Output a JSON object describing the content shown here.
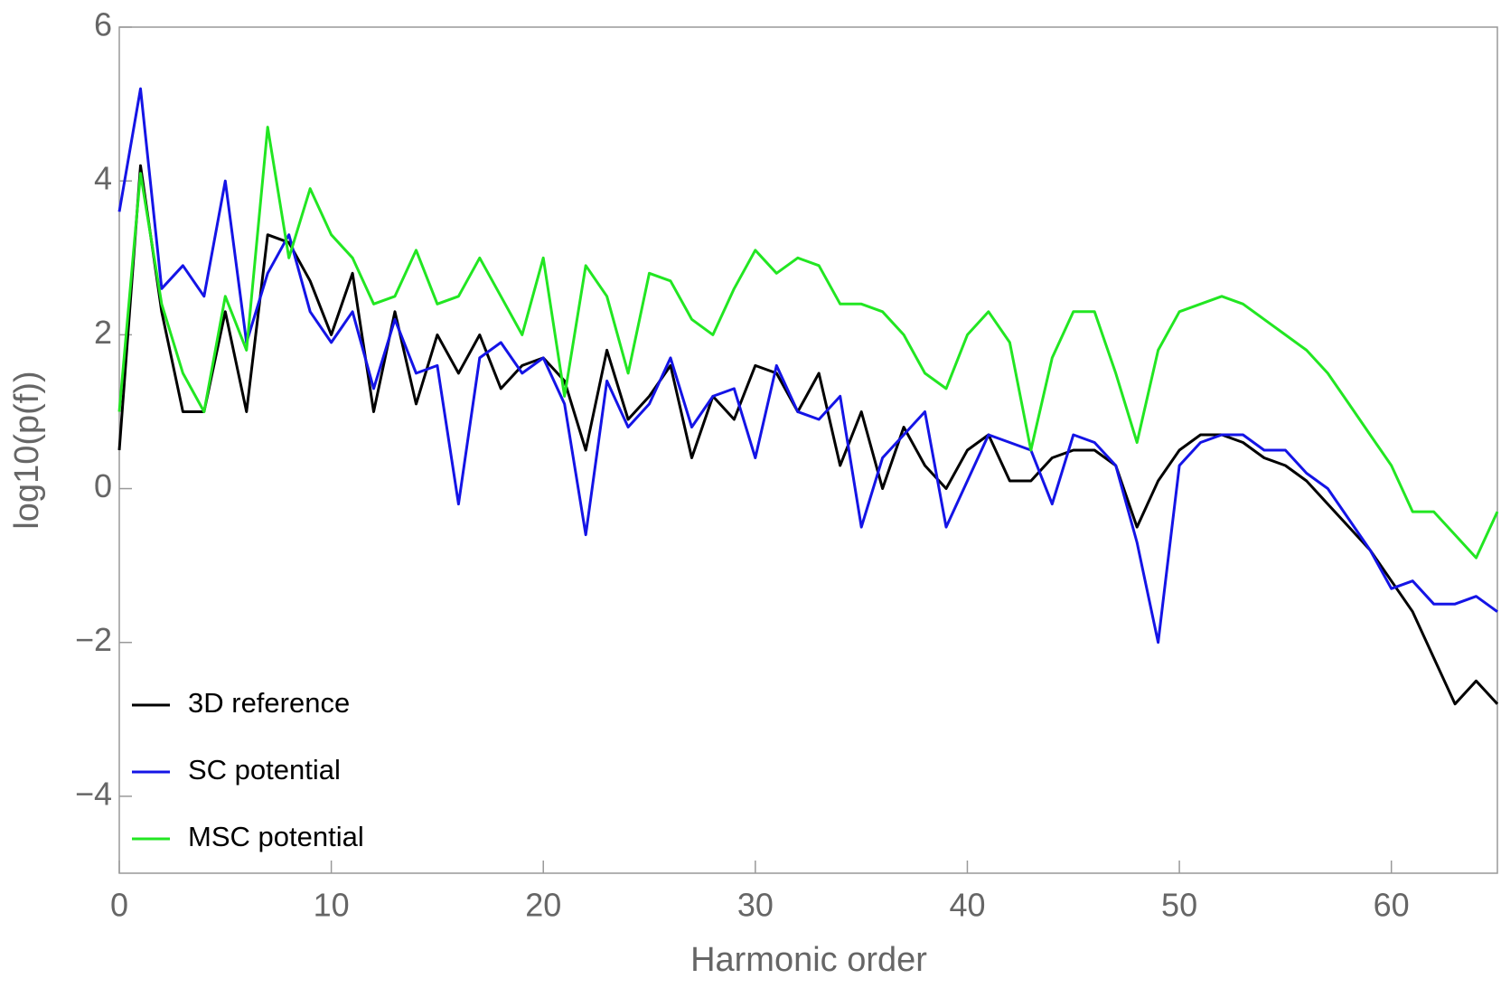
{
  "chart_data": {
    "type": "line",
    "xlabel": "Harmonic order",
    "ylabel": "log10(p(f))",
    "x": [
      0,
      1,
      2,
      3,
      4,
      5,
      6,
      7,
      8,
      9,
      10,
      11,
      12,
      13,
      14,
      15,
      16,
      17,
      18,
      19,
      20,
      21,
      22,
      23,
      24,
      25,
      26,
      27,
      28,
      29,
      30,
      31,
      32,
      33,
      34,
      35,
      36,
      37,
      38,
      39,
      40,
      41,
      42,
      43,
      44,
      45,
      46,
      47,
      48,
      49,
      50,
      51,
      52,
      53,
      54,
      55,
      56,
      57,
      58,
      59,
      60,
      61,
      62,
      63,
      64,
      65
    ],
    "series": [
      {
        "name": "3D reference",
        "color": "#000000",
        "values": [
          0.5,
          4.2,
          2.3,
          1.0,
          1.0,
          2.3,
          1.0,
          3.3,
          3.2,
          2.7,
          2.0,
          2.8,
          1.0,
          2.3,
          1.1,
          2.0,
          1.5,
          2.0,
          1.3,
          1.6,
          1.7,
          1.4,
          0.5,
          1.8,
          0.9,
          1.2,
          1.6,
          0.4,
          1.2,
          0.9,
          1.6,
          1.5,
          1.0,
          1.5,
          0.3,
          1.0,
          0.0,
          0.8,
          0.3,
          0.0,
          0.5,
          0.7,
          0.1,
          0.1,
          0.4,
          0.5,
          0.5,
          0.3,
          -0.5,
          0.1,
          0.5,
          0.7,
          0.7,
          0.6,
          0.4,
          0.3,
          0.1,
          -0.2,
          -0.5,
          -0.8,
          -1.2,
          -1.6,
          -2.2,
          -2.8,
          -2.5,
          -2.8
        ]
      },
      {
        "name": "SC potential",
        "color": "#1414e6",
        "values": [
          3.6,
          5.2,
          2.6,
          2.9,
          2.5,
          4.0,
          1.9,
          2.8,
          3.3,
          2.3,
          1.9,
          2.3,
          1.3,
          2.2,
          1.5,
          1.6,
          -0.2,
          1.7,
          1.9,
          1.5,
          1.7,
          1.1,
          -0.6,
          1.4,
          0.8,
          1.1,
          1.7,
          0.8,
          1.2,
          1.3,
          0.4,
          1.6,
          1.0,
          0.9,
          1.2,
          -0.5,
          0.4,
          0.7,
          1.0,
          -0.5,
          0.1,
          0.7,
          0.6,
          0.5,
          -0.2,
          0.7,
          0.6,
          0.3,
          -0.7,
          -2.0,
          0.3,
          0.6,
          0.7,
          0.7,
          0.5,
          0.5,
          0.2,
          0.0,
          -0.4,
          -0.8,
          -1.3,
          -1.2,
          -1.5,
          -1.5,
          -1.4,
          -1.6
        ]
      },
      {
        "name": "MSC potential",
        "color": "#22e622",
        "values": [
          1.0,
          4.1,
          2.4,
          1.5,
          1.0,
          2.5,
          1.8,
          4.7,
          3.0,
          3.9,
          3.3,
          3.0,
          2.4,
          2.5,
          3.1,
          2.4,
          2.5,
          3.0,
          2.5,
          2.0,
          3.0,
          1.2,
          2.9,
          2.5,
          1.5,
          2.8,
          2.7,
          2.2,
          2.0,
          2.6,
          3.1,
          2.8,
          3.0,
          2.9,
          2.4,
          2.4,
          2.3,
          2.0,
          1.5,
          1.3,
          2.0,
          2.3,
          1.9,
          0.5,
          1.7,
          2.3,
          2.3,
          1.5,
          0.6,
          1.8,
          2.3,
          2.4,
          2.5,
          2.4,
          2.2,
          2.0,
          1.8,
          1.5,
          1.1,
          0.7,
          0.3,
          -0.3,
          -0.3,
          -0.6,
          -0.9,
          -0.3
        ]
      }
    ],
    "xlim": [
      0,
      65
    ],
    "xticks": [
      0,
      10,
      20,
      30,
      40,
      50,
      60
    ],
    "ylim": [
      -5,
      6
    ],
    "yticks": [
      {
        "value": -4,
        "label": "−4"
      },
      {
        "value": -2,
        "label": "−2"
      },
      0,
      2,
      4,
      6
    ],
    "legend": "lower left"
  }
}
